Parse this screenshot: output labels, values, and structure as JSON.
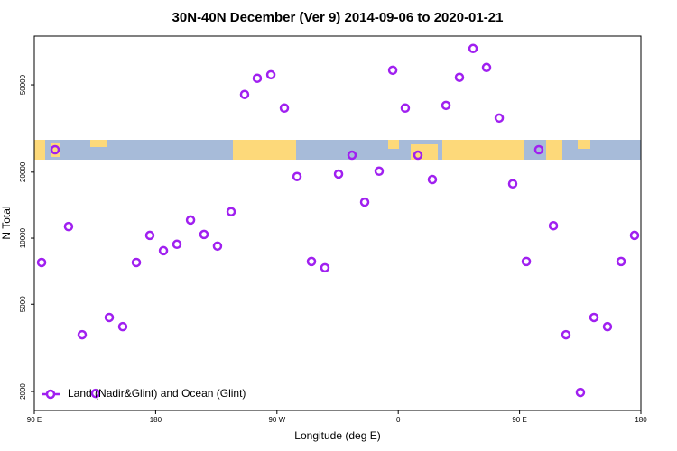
{
  "chart_data": {
    "type": "scatter",
    "title": "30N-40N December (Ver 9)   2014-09-06 to 2020-01-21",
    "x_label": "Longitude (deg E)",
    "y_label": "N Total",
    "log_y": true,
    "xlim": [
      90,
      540
    ],
    "ylim": [
      1640,
      83400
    ],
    "xticks": [
      {
        "value": 90,
        "label": "90 E"
      },
      {
        "value": 180,
        "label": "180"
      },
      {
        "value": 270,
        "label": "90 W"
      },
      {
        "value": 360,
        "label": "0"
      },
      {
        "value": 450,
        "label": "90 E"
      },
      {
        "value": 540,
        "label": "180"
      }
    ],
    "yticks": [
      2000,
      5000,
      10000,
      20000,
      50000
    ],
    "legend": "bottom-left",
    "series": [
      {
        "name": "Land (Nadir&Glint) and Ocean (Glint)",
        "color": "#a020f0",
        "x": [
          95.4,
          105.4,
          115.4,
          125.5,
          135.5,
          145.6,
          155.6,
          165.7,
          175.7,
          185.8,
          195.8,
          205.9,
          215.9,
          225.9,
          236,
          246,
          255.4,
          265.5,
          275.5,
          284.9,
          295.6,
          305.6,
          315.7,
          325.7,
          335.1,
          345.8,
          355.9,
          365.2,
          374.6,
          385.3,
          395.4,
          405.4,
          415.5,
          425.5,
          434.9,
          444.9,
          455,
          464.3,
          475.1,
          484.4,
          495.1,
          505.2,
          515.2,
          525.3,
          535.3
        ],
        "values": [
          7750,
          25300,
          11300,
          3630,
          1960,
          4350,
          3950,
          7750,
          10300,
          8770,
          9380,
          12100,
          10400,
          9200,
          13200,
          45200,
          53600,
          55600,
          39200,
          19100,
          7830,
          7330,
          19600,
          23900,
          14600,
          20200,
          58300,
          39200,
          23900,
          18500,
          40300,
          54100,
          73200,
          60000,
          35300,
          17700,
          7830,
          25300,
          11400,
          3630,
          1980,
          4350,
          3950,
          7830,
          10300
        ]
      }
    ]
  }
}
